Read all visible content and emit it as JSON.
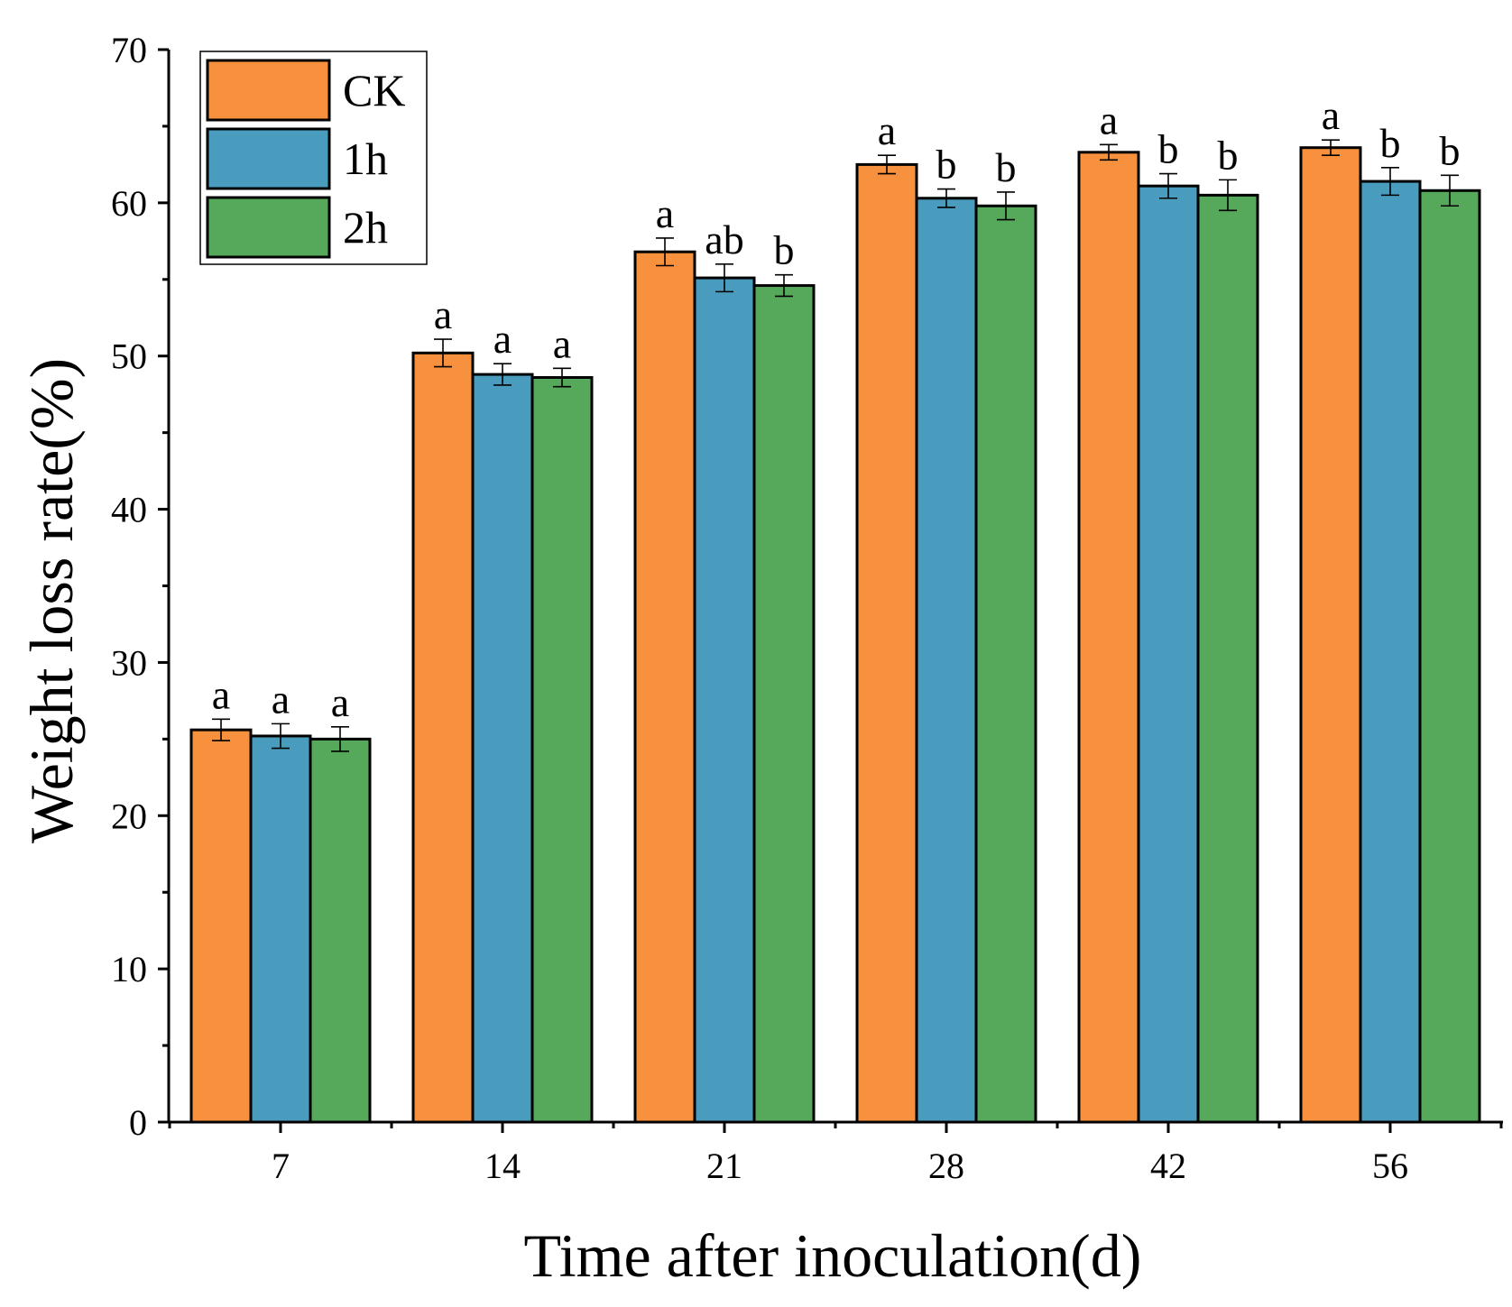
{
  "chart_data": {
    "type": "bar",
    "xlabel": "Time after inoculation(d)",
    "ylabel": "Weight loss rate(%)",
    "ylim": [
      0,
      70
    ],
    "yticks": [
      0,
      10,
      20,
      30,
      40,
      50,
      60,
      70
    ],
    "categories": [
      "7",
      "14",
      "21",
      "28",
      "42",
      "56"
    ],
    "legend_position": "top-left",
    "series": [
      {
        "name": "CK",
        "color": "#F7913D",
        "values": [
          25.6,
          50.2,
          56.8,
          62.5,
          63.3,
          63.6
        ],
        "errors": [
          0.7,
          0.9,
          0.9,
          0.6,
          0.5,
          0.5
        ],
        "labels": [
          "a",
          "a",
          "a",
          "a",
          "a",
          "a"
        ]
      },
      {
        "name": "1h",
        "color": "#4A9CBE",
        "values": [
          25.2,
          48.8,
          55.1,
          60.3,
          61.1,
          61.4
        ],
        "errors": [
          0.8,
          0.7,
          0.9,
          0.6,
          0.8,
          0.9
        ],
        "labels": [
          "a",
          "a",
          "ab",
          "b",
          "b",
          "b"
        ]
      },
      {
        "name": "2h",
        "color": "#56A95A",
        "values": [
          25.0,
          48.6,
          54.6,
          59.8,
          60.5,
          60.8
        ],
        "errors": [
          0.8,
          0.6,
          0.7,
          0.9,
          1.0,
          1.0
        ],
        "labels": [
          "a",
          "a",
          "b",
          "b",
          "b",
          "b"
        ]
      }
    ]
  }
}
